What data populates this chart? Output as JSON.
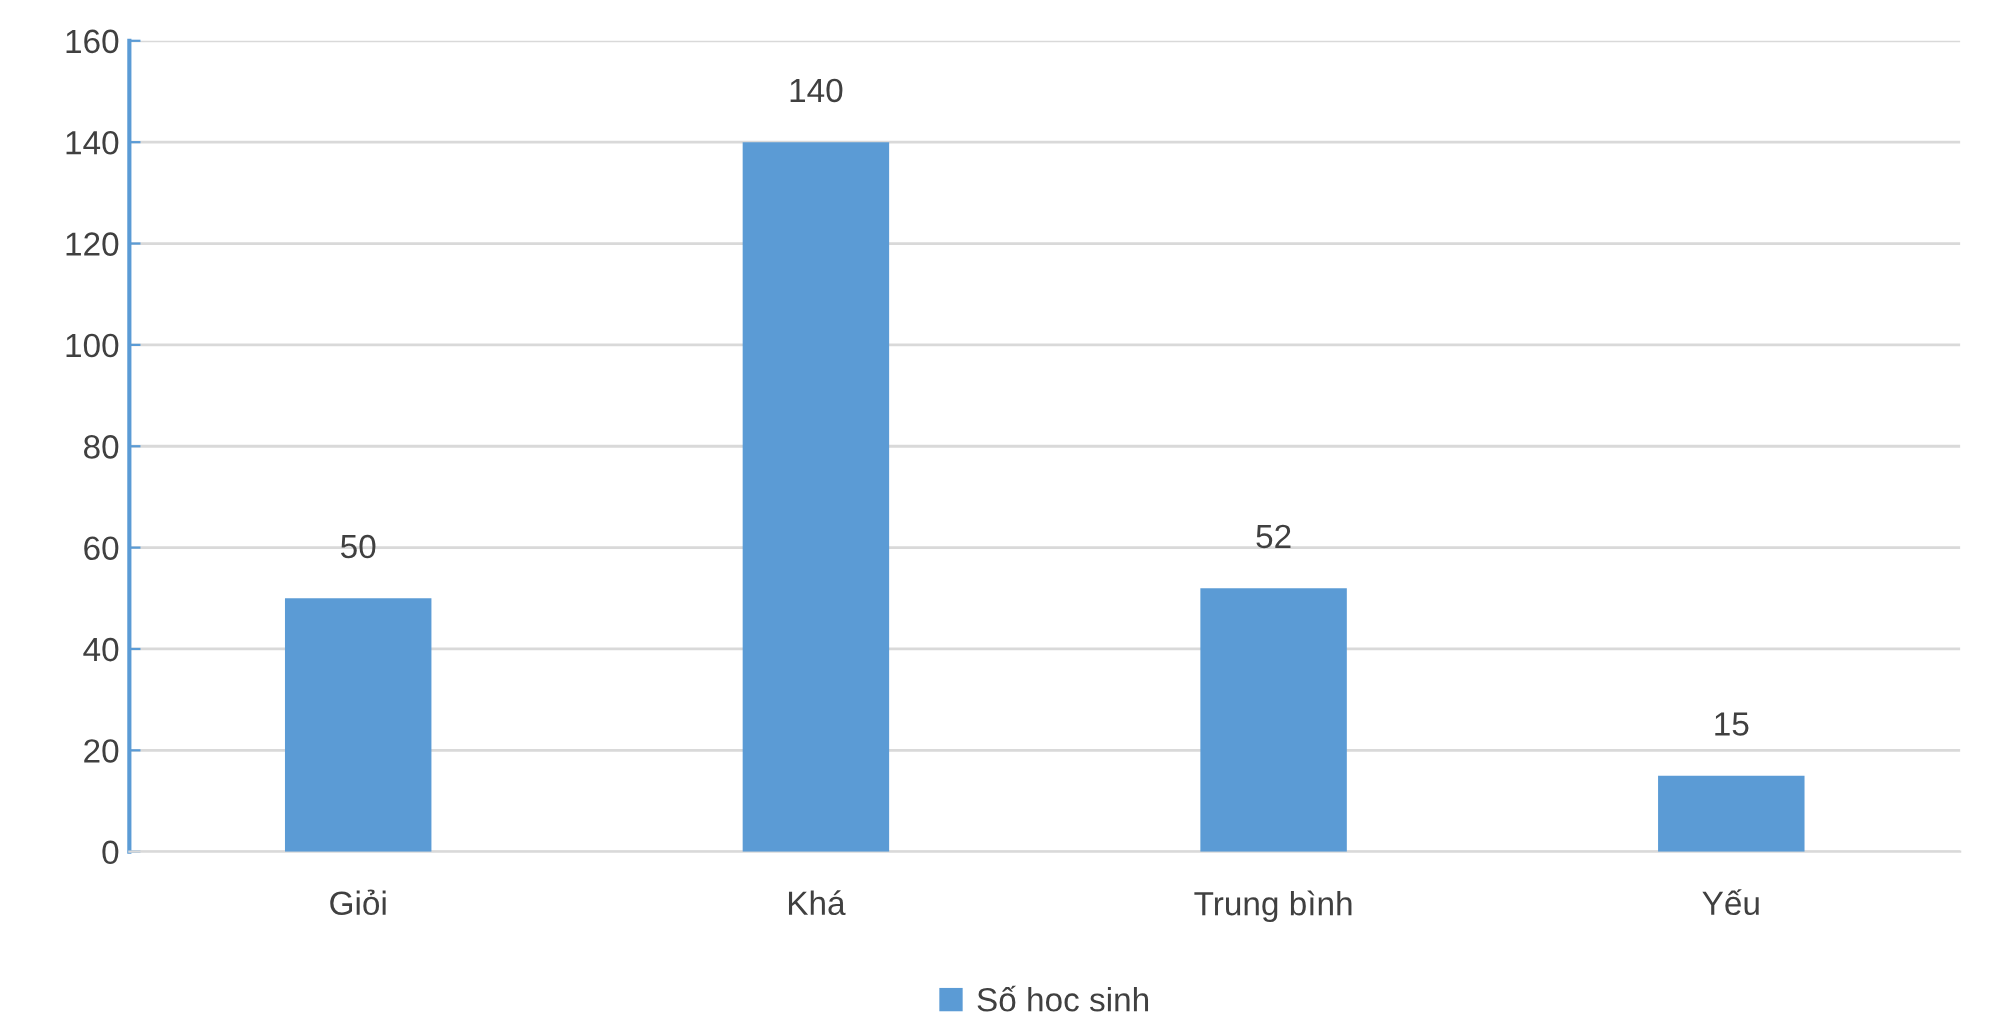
{
  "chart_data": {
    "type": "bar",
    "categories": [
      "Giỏi",
      "Khá",
      "Trung bình",
      "Yếu"
    ],
    "series": [
      {
        "name": "Số hoc sinh",
        "color": "#5b9bd5",
        "values": [
          50,
          140,
          52,
          15
        ]
      }
    ],
    "ylim": [
      0,
      160
    ],
    "yticks": [
      0,
      20,
      40,
      60,
      80,
      100,
      120,
      140,
      160
    ],
    "grid": "y",
    "legend": "bottom",
    "data_labels": true
  }
}
